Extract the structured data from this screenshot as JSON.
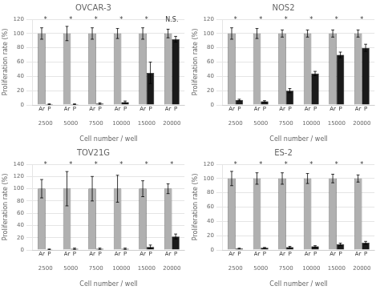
{
  "chart_data": [
    {
      "type": "bar",
      "title": "OVCAR-3",
      "xlabel": "Cell number / well",
      "ylabel": "Proliferation rate (%)",
      "categories": [
        "2500",
        "5000",
        "7500",
        "10000",
        "15000",
        "20000"
      ],
      "series": [
        {
          "name": "Ar",
          "color": "#b0b0b0",
          "values": [
            100,
            100,
            100,
            100,
            100,
            100
          ],
          "errors": [
            8,
            10,
            8,
            7,
            8,
            6
          ]
        },
        {
          "name": "P",
          "color": "#1a1a1a",
          "values": [
            1,
            1,
            2,
            4,
            45,
            92
          ],
          "errors": [
            0.5,
            0.5,
            1,
            1.5,
            15,
            4
          ]
        }
      ],
      "annotations": [
        {
          "text": "*",
          "y": 114
        },
        {
          "text": "*",
          "y": 114
        },
        {
          "text": "*",
          "y": 114
        },
        {
          "text": "*",
          "y": 114
        },
        {
          "text": "*",
          "y": 114
        },
        {
          "text": "N.S.",
          "y": 114
        }
      ],
      "ylim": [
        0,
        120
      ],
      "yticks": [
        0,
        20,
        40,
        60,
        80,
        100,
        120
      ],
      "grid": true
    },
    {
      "type": "bar",
      "title": "NOS2",
      "xlabel": "Cell number / well",
      "ylabel": "Proliferation rate (%)",
      "categories": [
        "2500",
        "5000",
        "7500",
        "10000",
        "15000",
        "20000"
      ],
      "series": [
        {
          "name": "Ar",
          "color": "#b0b0b0",
          "values": [
            100,
            100,
            100,
            100,
            100,
            100
          ],
          "errors": [
            8,
            7,
            5,
            5,
            5,
            5
          ]
        },
        {
          "name": "P",
          "color": "#1a1a1a",
          "values": [
            7,
            5,
            20,
            44,
            70,
            80
          ],
          "errors": [
            1,
            1,
            3,
            3,
            4,
            5
          ]
        }
      ],
      "annotations": [
        {
          "text": "*",
          "y": 114
        },
        {
          "text": "*",
          "y": 114
        },
        {
          "text": "*",
          "y": 114
        },
        {
          "text": "*",
          "y": 114
        },
        {
          "text": "*",
          "y": 114
        },
        {
          "text": "*",
          "y": 114
        }
      ],
      "ylim": [
        0,
        120
      ],
      "yticks": [
        0,
        20,
        40,
        60,
        80,
        100,
        120
      ],
      "grid": true
    },
    {
      "type": "bar",
      "title": "TOV21G",
      "xlabel": "Cell number / well",
      "ylabel": "Proliferation rate (%)",
      "categories": [
        "2500",
        "5000",
        "7500",
        "10000",
        "15000",
        "20000"
      ],
      "series": [
        {
          "name": "Ar",
          "color": "#b0b0b0",
          "values": [
            100,
            100,
            100,
            100,
            100,
            100
          ],
          "errors": [
            15,
            28,
            20,
            22,
            13,
            8
          ]
        },
        {
          "name": "P",
          "color": "#1a1a1a",
          "values": [
            1,
            2,
            2,
            2,
            5,
            22
          ],
          "errors": [
            0.5,
            1,
            1,
            1,
            3,
            4
          ]
        }
      ],
      "annotations": [
        {
          "text": "*",
          "y": 133
        },
        {
          "text": "*",
          "y": 133
        },
        {
          "text": "*",
          "y": 133
        },
        {
          "text": "*",
          "y": 133
        },
        {
          "text": "*",
          "y": 133
        },
        {
          "text": "*",
          "y": 133
        }
      ],
      "ylim": [
        0,
        140
      ],
      "yticks": [
        0,
        20,
        40,
        60,
        80,
        100,
        120,
        140
      ],
      "grid": true
    },
    {
      "type": "bar",
      "title": "ES-2",
      "xlabel": "Cell number / well",
      "ylabel": "Proliferation rate (%)",
      "categories": [
        "2500",
        "5000",
        "7500",
        "10000",
        "15000",
        "20000"
      ],
      "series": [
        {
          "name": "Ar",
          "color": "#b0b0b0",
          "values": [
            100,
            100,
            100,
            100,
            100,
            100
          ],
          "errors": [
            10,
            8,
            8,
            7,
            6,
            5
          ]
        },
        {
          "name": "P",
          "color": "#1a1a1a",
          "values": [
            2,
            3,
            4,
            5,
            8,
            10
          ],
          "errors": [
            0.5,
            0.5,
            1,
            1,
            1.5,
            2
          ]
        }
      ],
      "annotations": [
        {
          "text": "*",
          "y": 114
        },
        {
          "text": "*",
          "y": 114
        },
        {
          "text": "*",
          "y": 114
        },
        {
          "text": "*",
          "y": 114
        },
        {
          "text": "*",
          "y": 114
        },
        {
          "text": "*",
          "y": 114
        }
      ],
      "ylim": [
        0,
        120
      ],
      "yticks": [
        0,
        20,
        40,
        60,
        80,
        100,
        120
      ],
      "grid": true
    }
  ]
}
